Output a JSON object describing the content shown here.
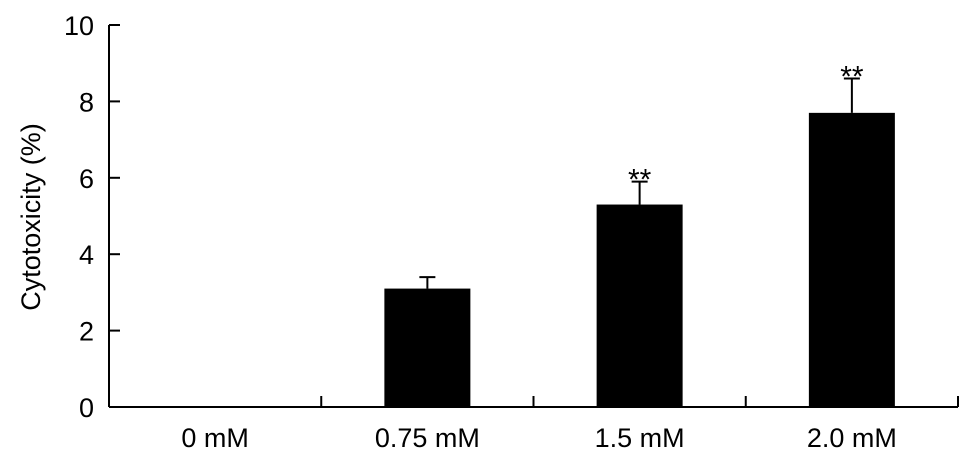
{
  "chart_data": {
    "type": "bar",
    "categories": [
      "0 mM",
      "0.75 mM",
      "1.5 mM",
      "2.0 mM"
    ],
    "values": [
      0,
      3.1,
      5.3,
      7.7
    ],
    "errors": [
      0,
      0.3,
      0.6,
      0.9
    ],
    "annotations": [
      "",
      "",
      "**",
      "**"
    ],
    "ylabel": "Cytotoxicity (%)",
    "xlabel": "",
    "ylim": [
      0,
      10
    ],
    "yticks": [
      0,
      2,
      4,
      6,
      8,
      10
    ],
    "ytick_labels": [
      "0",
      "2",
      "4",
      "6",
      "8",
      "10"
    ],
    "grid": false,
    "bar_color": "#000000"
  }
}
